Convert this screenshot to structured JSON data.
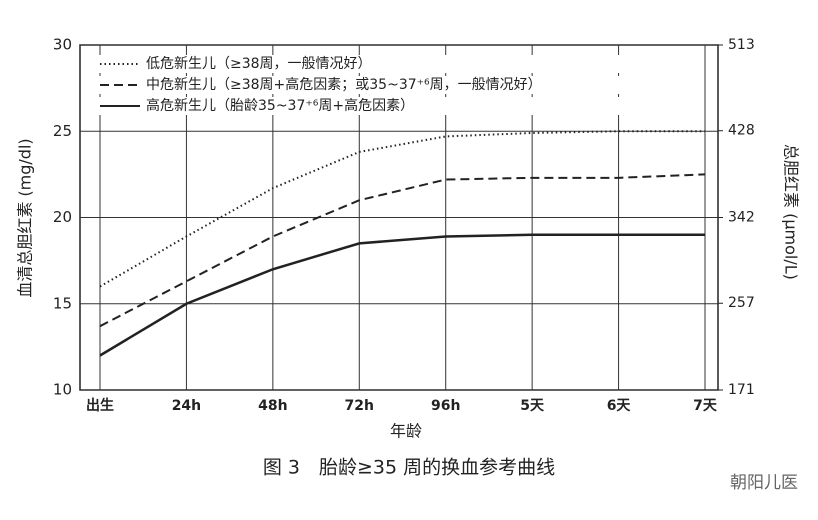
{
  "chart_data": {
    "type": "line",
    "title": "图 3　胎龄≥35 周的换血参考曲线",
    "x_label": "年龄",
    "y_label": "血清总胆红素 (mg/dl)",
    "y2_label": "总胆红素 (μmol/L)",
    "watermark": "朝阳儿医",
    "categories": [
      "出生",
      "24h",
      "48h",
      "72h",
      "96h",
      "5天",
      "6天",
      "7天"
    ],
    "ylim": [
      10,
      30
    ],
    "yticks": [
      10,
      15,
      20,
      25,
      30
    ],
    "y2lim": [
      171,
      513
    ],
    "y2ticks": [
      171,
      257,
      342,
      428,
      513
    ],
    "grid": true,
    "legend": "top-left",
    "series": [
      {
        "name": "低危新生儿（≥38周，一般情况好）",
        "color": "#222222",
        "line_style": "dotted",
        "values": [
          16,
          18.9,
          21.7,
          23.8,
          24.7,
          24.9,
          25,
          25
        ]
      },
      {
        "name": "中危新生儿（≥38周+高危因素；或35~37⁺⁶周，一般情况好）",
        "color": "#222222",
        "line_style": "dashed",
        "values": [
          13.7,
          16.3,
          18.9,
          21,
          22.2,
          22.3,
          22.3,
          22.5
        ]
      },
      {
        "name": "高危新生儿（胎龄35~37⁺⁶周+高危因素）",
        "color": "#222222",
        "line_style": "solid",
        "values": [
          12,
          15,
          17,
          18.5,
          18.9,
          19,
          19,
          19
        ]
      }
    ]
  }
}
